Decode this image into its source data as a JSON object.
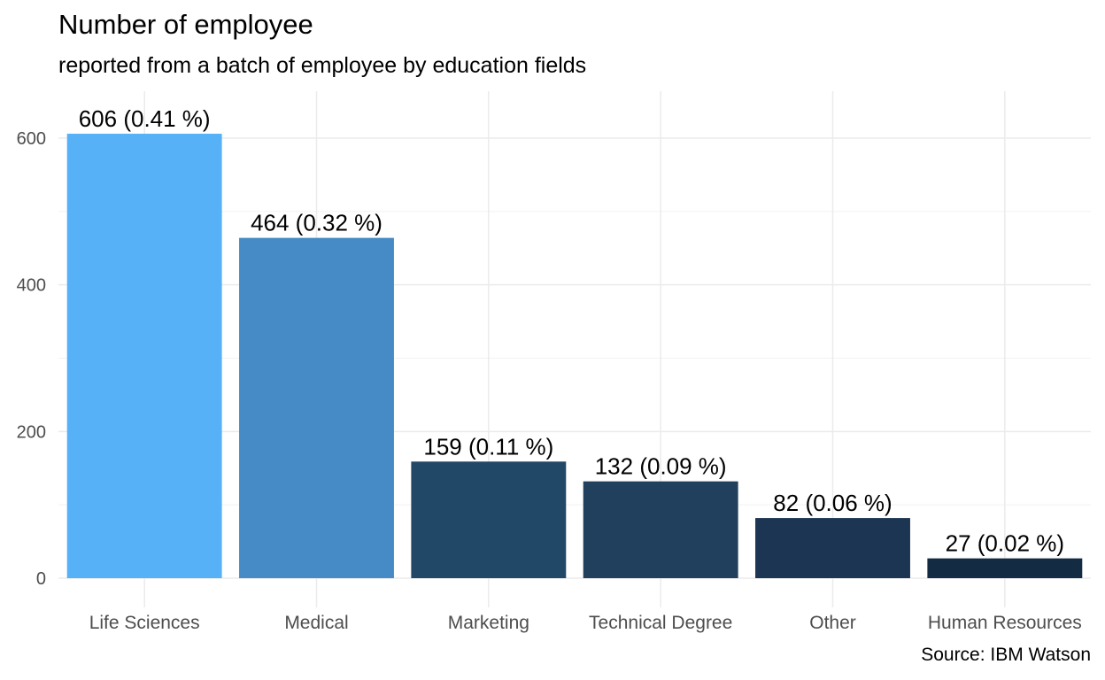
{
  "chart_data": {
    "type": "bar",
    "title": "Number of employee",
    "subtitle": "reported from a batch of employee by education fields",
    "caption": "Source: IBM Watson",
    "xlabel": "",
    "ylabel": "",
    "categories": [
      "Life Sciences",
      "Medical",
      "Marketing",
      "Technical Degree",
      "Other",
      "Human Resources"
    ],
    "values": [
      606,
      464,
      159,
      132,
      82,
      27
    ],
    "data_labels": [
      "606 (0.41 %)",
      "464 (0.32 %)",
      "159 (0.11 %)",
      "132 (0.09 %)",
      "82 (0.06 %)",
      "27 (0.02 %)"
    ],
    "bar_colors": [
      "#56b1f7",
      "#468bc5",
      "#224867",
      "#20405e",
      "#1b3552",
      "#132b43"
    ],
    "ylim": [
      0,
      650
    ],
    "yticks": [
      0,
      200,
      400,
      600
    ],
    "grid": true,
    "legend": "none"
  }
}
